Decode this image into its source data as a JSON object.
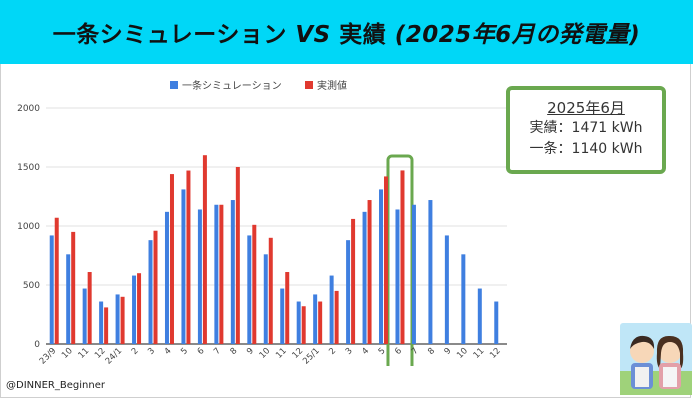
{
  "header": {
    "title_part1": "一条シミュレーション ",
    "title_vs": "VS",
    "title_part2": " 実績 ",
    "title_paren": "(2025年6月の発電量)"
  },
  "callout": {
    "title": "2025年6月",
    "line1": "実績：1471 kWh",
    "line2": "一条：1140 kWh"
  },
  "credit": "@DINNER_Beginner",
  "colors": {
    "banner": "#00d7f7",
    "sim": "#3f7fe0",
    "actual": "#e0392f",
    "highlight": "#6aa84f"
  },
  "chart_data": {
    "type": "bar",
    "categories": [
      "23/9",
      "10",
      "11",
      "12",
      "24/1",
      "2",
      "3",
      "4",
      "5",
      "6",
      "7",
      "8",
      "9",
      "10",
      "11",
      "12",
      "25/1",
      "2",
      "3",
      "4",
      "5",
      "6",
      "7",
      "8",
      "9",
      "10",
      "11",
      "12"
    ],
    "series": [
      {
        "name": "一条シミュレーション",
        "values": [
          920,
          760,
          470,
          360,
          420,
          580,
          880,
          1120,
          1310,
          1140,
          1180,
          1220,
          920,
          760,
          470,
          360,
          420,
          580,
          880,
          1120,
          1310,
          1140,
          1180,
          1220,
          920,
          760,
          470,
          360
        ]
      },
      {
        "name": "実測値",
        "values": [
          1070,
          950,
          610,
          310,
          400,
          600,
          960,
          1440,
          1470,
          1600,
          1180,
          1500,
          1010,
          900,
          610,
          320,
          360,
          450,
          1060,
          1220,
          1420,
          1471,
          null,
          null,
          null,
          null,
          null,
          null
        ]
      }
    ],
    "ylim": [
      0,
      2000
    ],
    "yticks": [
      0,
      500,
      1000,
      1500,
      2000
    ],
    "highlight_index": 21,
    "legend_position": "top-center",
    "grid": true
  }
}
